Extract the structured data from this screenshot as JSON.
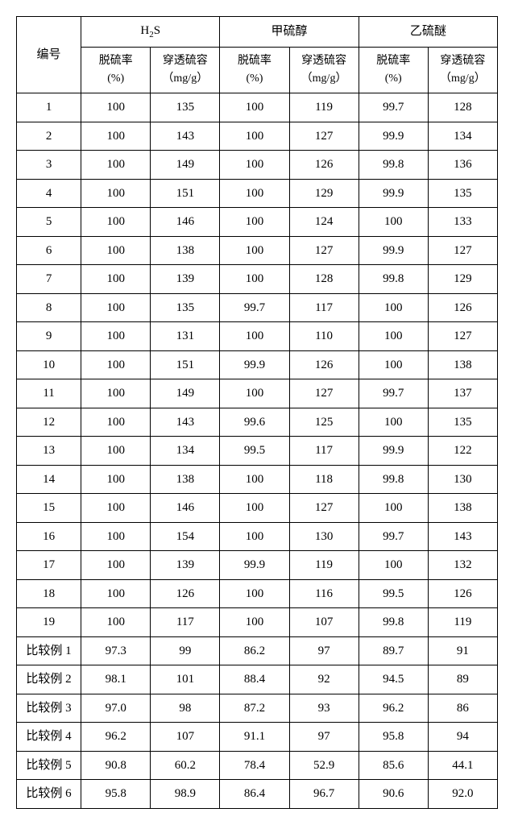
{
  "header": {
    "col_label": "编号",
    "group1": "H<sub>2</sub>S",
    "group2": "甲硫醇",
    "group3": "乙硫醚",
    "sub_rate": "脱硫率<br>(%)",
    "sub_cap": "穿透硫容<br>（mg/g）"
  },
  "rows": [
    {
      "label": "1",
      "a": "100",
      "b": "135",
      "c": "100",
      "d": "119",
      "e": "99.7",
      "f": "128"
    },
    {
      "label": "2",
      "a": "100",
      "b": "143",
      "c": "100",
      "d": "127",
      "e": "99.9",
      "f": "134"
    },
    {
      "label": "3",
      "a": "100",
      "b": "149",
      "c": "100",
      "d": "126",
      "e": "99.8",
      "f": "136"
    },
    {
      "label": "4",
      "a": "100",
      "b": "151",
      "c": "100",
      "d": "129",
      "e": "99.9",
      "f": "135"
    },
    {
      "label": "5",
      "a": "100",
      "b": "146",
      "c": "100",
      "d": "124",
      "e": "100",
      "f": "133"
    },
    {
      "label": "6",
      "a": "100",
      "b": "138",
      "c": "100",
      "d": "127",
      "e": "99.9",
      "f": "127"
    },
    {
      "label": "7",
      "a": "100",
      "b": "139",
      "c": "100",
      "d": "128",
      "e": "99.8",
      "f": "129"
    },
    {
      "label": "8",
      "a": "100",
      "b": "135",
      "c": "99.7",
      "d": "117",
      "e": "100",
      "f": "126"
    },
    {
      "label": "9",
      "a": "100",
      "b": "131",
      "c": "100",
      "d": "110",
      "e": "100",
      "f": "127"
    },
    {
      "label": "10",
      "a": "100",
      "b": "151",
      "c": "99.9",
      "d": "126",
      "e": "100",
      "f": "138"
    },
    {
      "label": "11",
      "a": "100",
      "b": "149",
      "c": "100",
      "d": "127",
      "e": "99.7",
      "f": "137"
    },
    {
      "label": "12",
      "a": "100",
      "b": "143",
      "c": "99.6",
      "d": "125",
      "e": "100",
      "f": "135"
    },
    {
      "label": "13",
      "a": "100",
      "b": "134",
      "c": "99.5",
      "d": "117",
      "e": "99.9",
      "f": "122"
    },
    {
      "label": "14",
      "a": "100",
      "b": "138",
      "c": "100",
      "d": "118",
      "e": "99.8",
      "f": "130"
    },
    {
      "label": "15",
      "a": "100",
      "b": "146",
      "c": "100",
      "d": "127",
      "e": "100",
      "f": "138"
    },
    {
      "label": "16",
      "a": "100",
      "b": "154",
      "c": "100",
      "d": "130",
      "e": "99.7",
      "f": "143"
    },
    {
      "label": "17",
      "a": "100",
      "b": "139",
      "c": "99.9",
      "d": "119",
      "e": "100",
      "f": "132"
    },
    {
      "label": "18",
      "a": "100",
      "b": "126",
      "c": "100",
      "d": "116",
      "e": "99.5",
      "f": "126"
    },
    {
      "label": "19",
      "a": "100",
      "b": "117",
      "c": "100",
      "d": "107",
      "e": "99.8",
      "f": "119"
    },
    {
      "label": "比较例 1",
      "a": "97.3",
      "b": "99",
      "c": "86.2",
      "d": "97",
      "e": "89.7",
      "f": "91"
    },
    {
      "label": "比较例 2",
      "a": "98.1",
      "b": "101",
      "c": "88.4",
      "d": "92",
      "e": "94.5",
      "f": "89"
    },
    {
      "label": "比较例 3",
      "a": "97.0",
      "b": "98",
      "c": "87.2",
      "d": "93",
      "e": "96.2",
      "f": "86"
    },
    {
      "label": "比较例 4",
      "a": "96.2",
      "b": "107",
      "c": "91.1",
      "d": "97",
      "e": "95.8",
      "f": "94"
    },
    {
      "label": "比较例 5",
      "a": "90.8",
      "b": "60.2",
      "c": "78.4",
      "d": "52.9",
      "e": "85.6",
      "f": "44.1"
    },
    {
      "label": "比较例 6",
      "a": "95.8",
      "b": "98.9",
      "c": "86.4",
      "d": "96.7",
      "e": "90.6",
      "f": "92.0"
    }
  ]
}
